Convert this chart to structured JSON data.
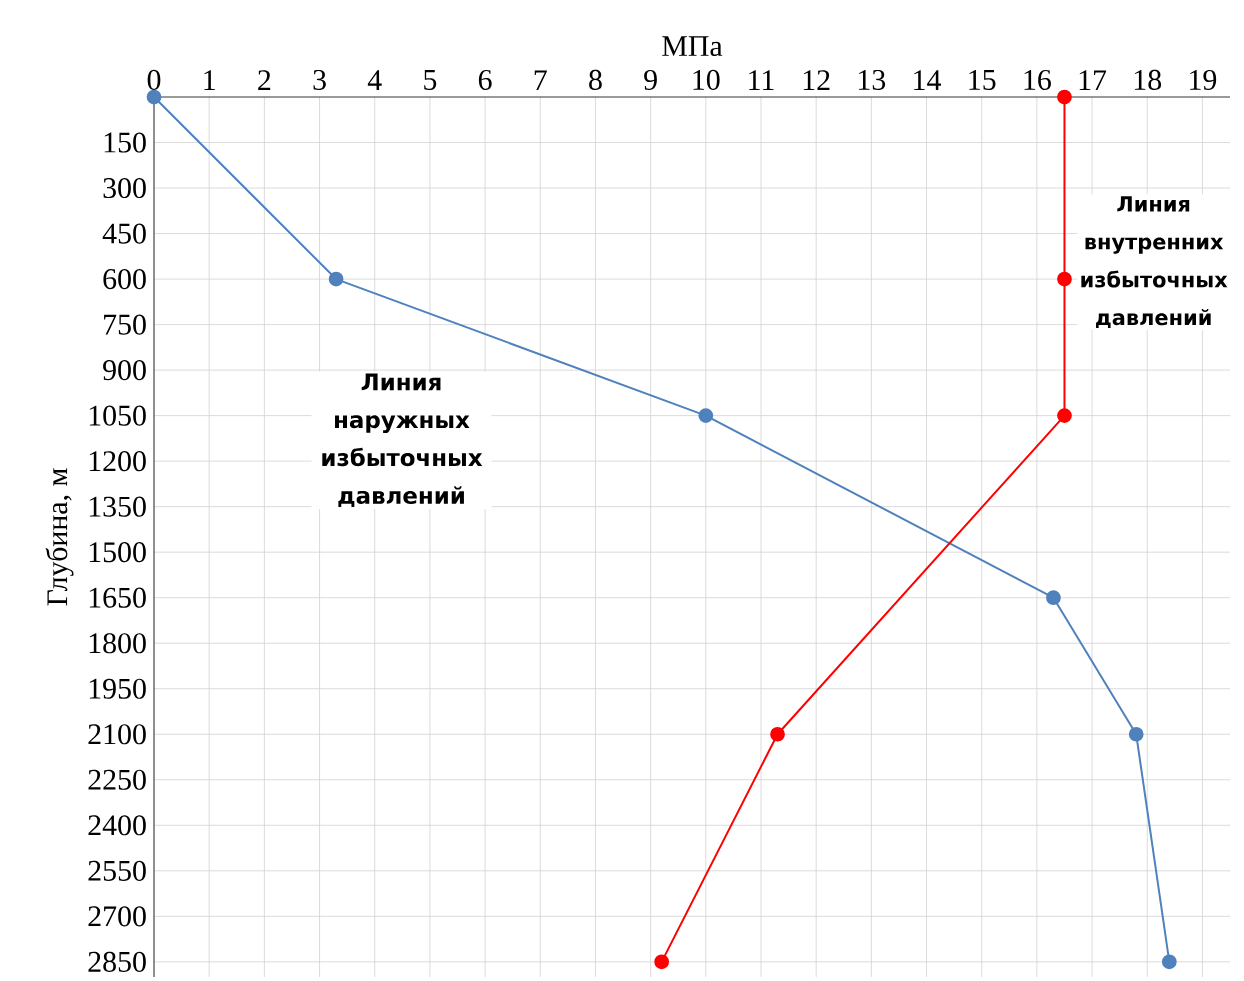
{
  "chart_data": {
    "type": "line",
    "xlabel": "МПа",
    "ylabel": "Глубина, м",
    "series": [
      {
        "color": "#4f81bd",
        "x": [
          0,
          3.3,
          10,
          16.3,
          17.8,
          18.4
        ],
        "values": [
          0,
          600,
          1050,
          1650,
          2100,
          2850
        ]
      },
      {
        "color": "#ff0000",
        "x": [
          16.5,
          16.5,
          16.5,
          11.3,
          9.2
        ],
        "values": [
          0,
          600,
          1050,
          2100,
          2850
        ]
      }
    ],
    "xlim": [
      0,
      19.5
    ],
    "xticks": [
      0,
      1,
      2,
      3,
      4,
      5,
      6,
      7,
      8,
      9,
      10,
      11,
      12,
      13,
      14,
      15,
      16,
      17,
      18,
      19
    ],
    "ylim": [
      2900,
      0
    ],
    "yticks": [
      150,
      300,
      450,
      600,
      750,
      900,
      1050,
      1200,
      1350,
      1500,
      1650,
      1800,
      1950,
      2100,
      2250,
      2400,
      2550,
      2700,
      2850
    ],
    "grid": true,
    "marker": "circle",
    "line_style": "solid",
    "annotations": [
      "Линия наружных избыточных давлений",
      "Линия внутренних избыточных давлений"
    ]
  }
}
